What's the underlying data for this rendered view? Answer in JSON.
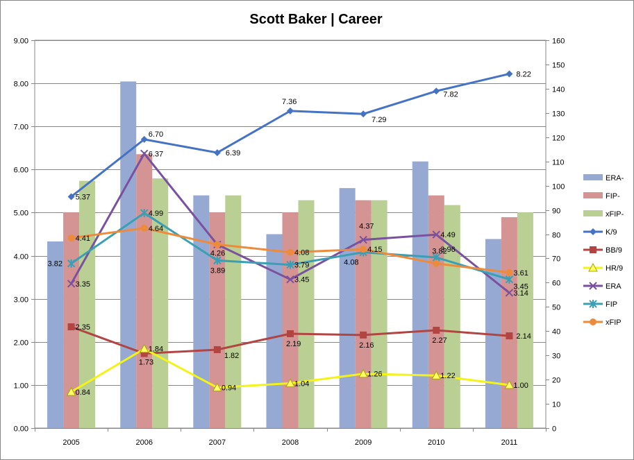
{
  "chart_data": {
    "type": "bar",
    "title": "Scott Baker | Career",
    "categories": [
      "2005",
      "2006",
      "2007",
      "2008",
      "2009",
      "2010",
      "2011"
    ],
    "left_axis": {
      "ylim": [
        0,
        9
      ],
      "ticks": [
        "0.00",
        "1.00",
        "2.00",
        "3.00",
        "4.00",
        "5.00",
        "6.00",
        "7.00",
        "8.00",
        "9.00"
      ]
    },
    "right_axis": {
      "ylim": [
        0,
        160
      ],
      "ticks": [
        "0",
        "10",
        "20",
        "30",
        "40",
        "50",
        "60",
        "70",
        "80",
        "90",
        "100",
        "110",
        "120",
        "130",
        "140",
        "150",
        "160"
      ]
    },
    "grid": true,
    "legend_position": "right",
    "bar_series": [
      {
        "name": "ERA-",
        "color": "#95a9d2",
        "axis": "right",
        "values": [
          77,
          143,
          96,
          80,
          99,
          110,
          78
        ]
      },
      {
        "name": "FIP-",
        "color": "#d39493",
        "axis": "right",
        "values": [
          89,
          113,
          89,
          89,
          94,
          96,
          87
        ]
      },
      {
        "name": "xFIP-",
        "color": "#bacf93",
        "axis": "right",
        "values": [
          102,
          103,
          96,
          94,
          94,
          92,
          89
        ]
      }
    ],
    "line_series": [
      {
        "name": "K/9",
        "color": "#4472c4",
        "marker": "diamond",
        "axis": "left",
        "values": [
          5.37,
          6.7,
          6.39,
          7.36,
          7.29,
          7.82,
          8.22
        ],
        "labels": [
          "5.37",
          "6.70",
          "6.39",
          "7.36",
          "7.29",
          "7.82",
          "8.22"
        ]
      },
      {
        "name": "BB/9",
        "color": "#b24442",
        "marker": "square",
        "axis": "left",
        "values": [
          2.35,
          1.73,
          1.82,
          2.19,
          2.16,
          2.27,
          2.14
        ],
        "labels": [
          "2.35",
          "1.73",
          "1.82",
          "2.19",
          "2.16",
          "2.27",
          "2.14"
        ]
      },
      {
        "name": "HR/9",
        "color": "#f3f318",
        "marker": "triangle",
        "axis": "left",
        "values": [
          0.84,
          1.84,
          0.94,
          1.04,
          1.26,
          1.22,
          1.0
        ],
        "labels": [
          "0.84",
          "1.84",
          "0.94",
          "1.04",
          "1.26",
          "1.22",
          "1.00"
        ]
      },
      {
        "name": "ERA",
        "color": "#7a519e",
        "marker": "x",
        "axis": "left",
        "values": [
          3.35,
          6.37,
          4.26,
          3.45,
          4.37,
          4.49,
          3.14
        ],
        "labels": [
          "3.35",
          "6.37",
          "4.26",
          "3.45",
          "4.37",
          "4.49",
          "3.14"
        ]
      },
      {
        "name": "FIP",
        "color": "#3a9fb5",
        "marker": "star",
        "axis": "left",
        "values": [
          3.82,
          4.99,
          3.89,
          3.79,
          4.08,
          3.96,
          3.45
        ],
        "labels": [
          "3.82",
          "4.99",
          "3.89",
          "3.79",
          "4.08",
          "3.96",
          "3.45"
        ]
      },
      {
        "name": "xFIP",
        "color": "#ed8b3c",
        "marker": "circle",
        "axis": "left",
        "values": [
          4.41,
          4.64,
          4.26,
          4.08,
          4.15,
          3.82,
          3.61
        ],
        "labels": [
          "4.41",
          "4.64",
          "",
          "4.08",
          "4.15",
          "3.82",
          "3.61"
        ]
      }
    ]
  }
}
